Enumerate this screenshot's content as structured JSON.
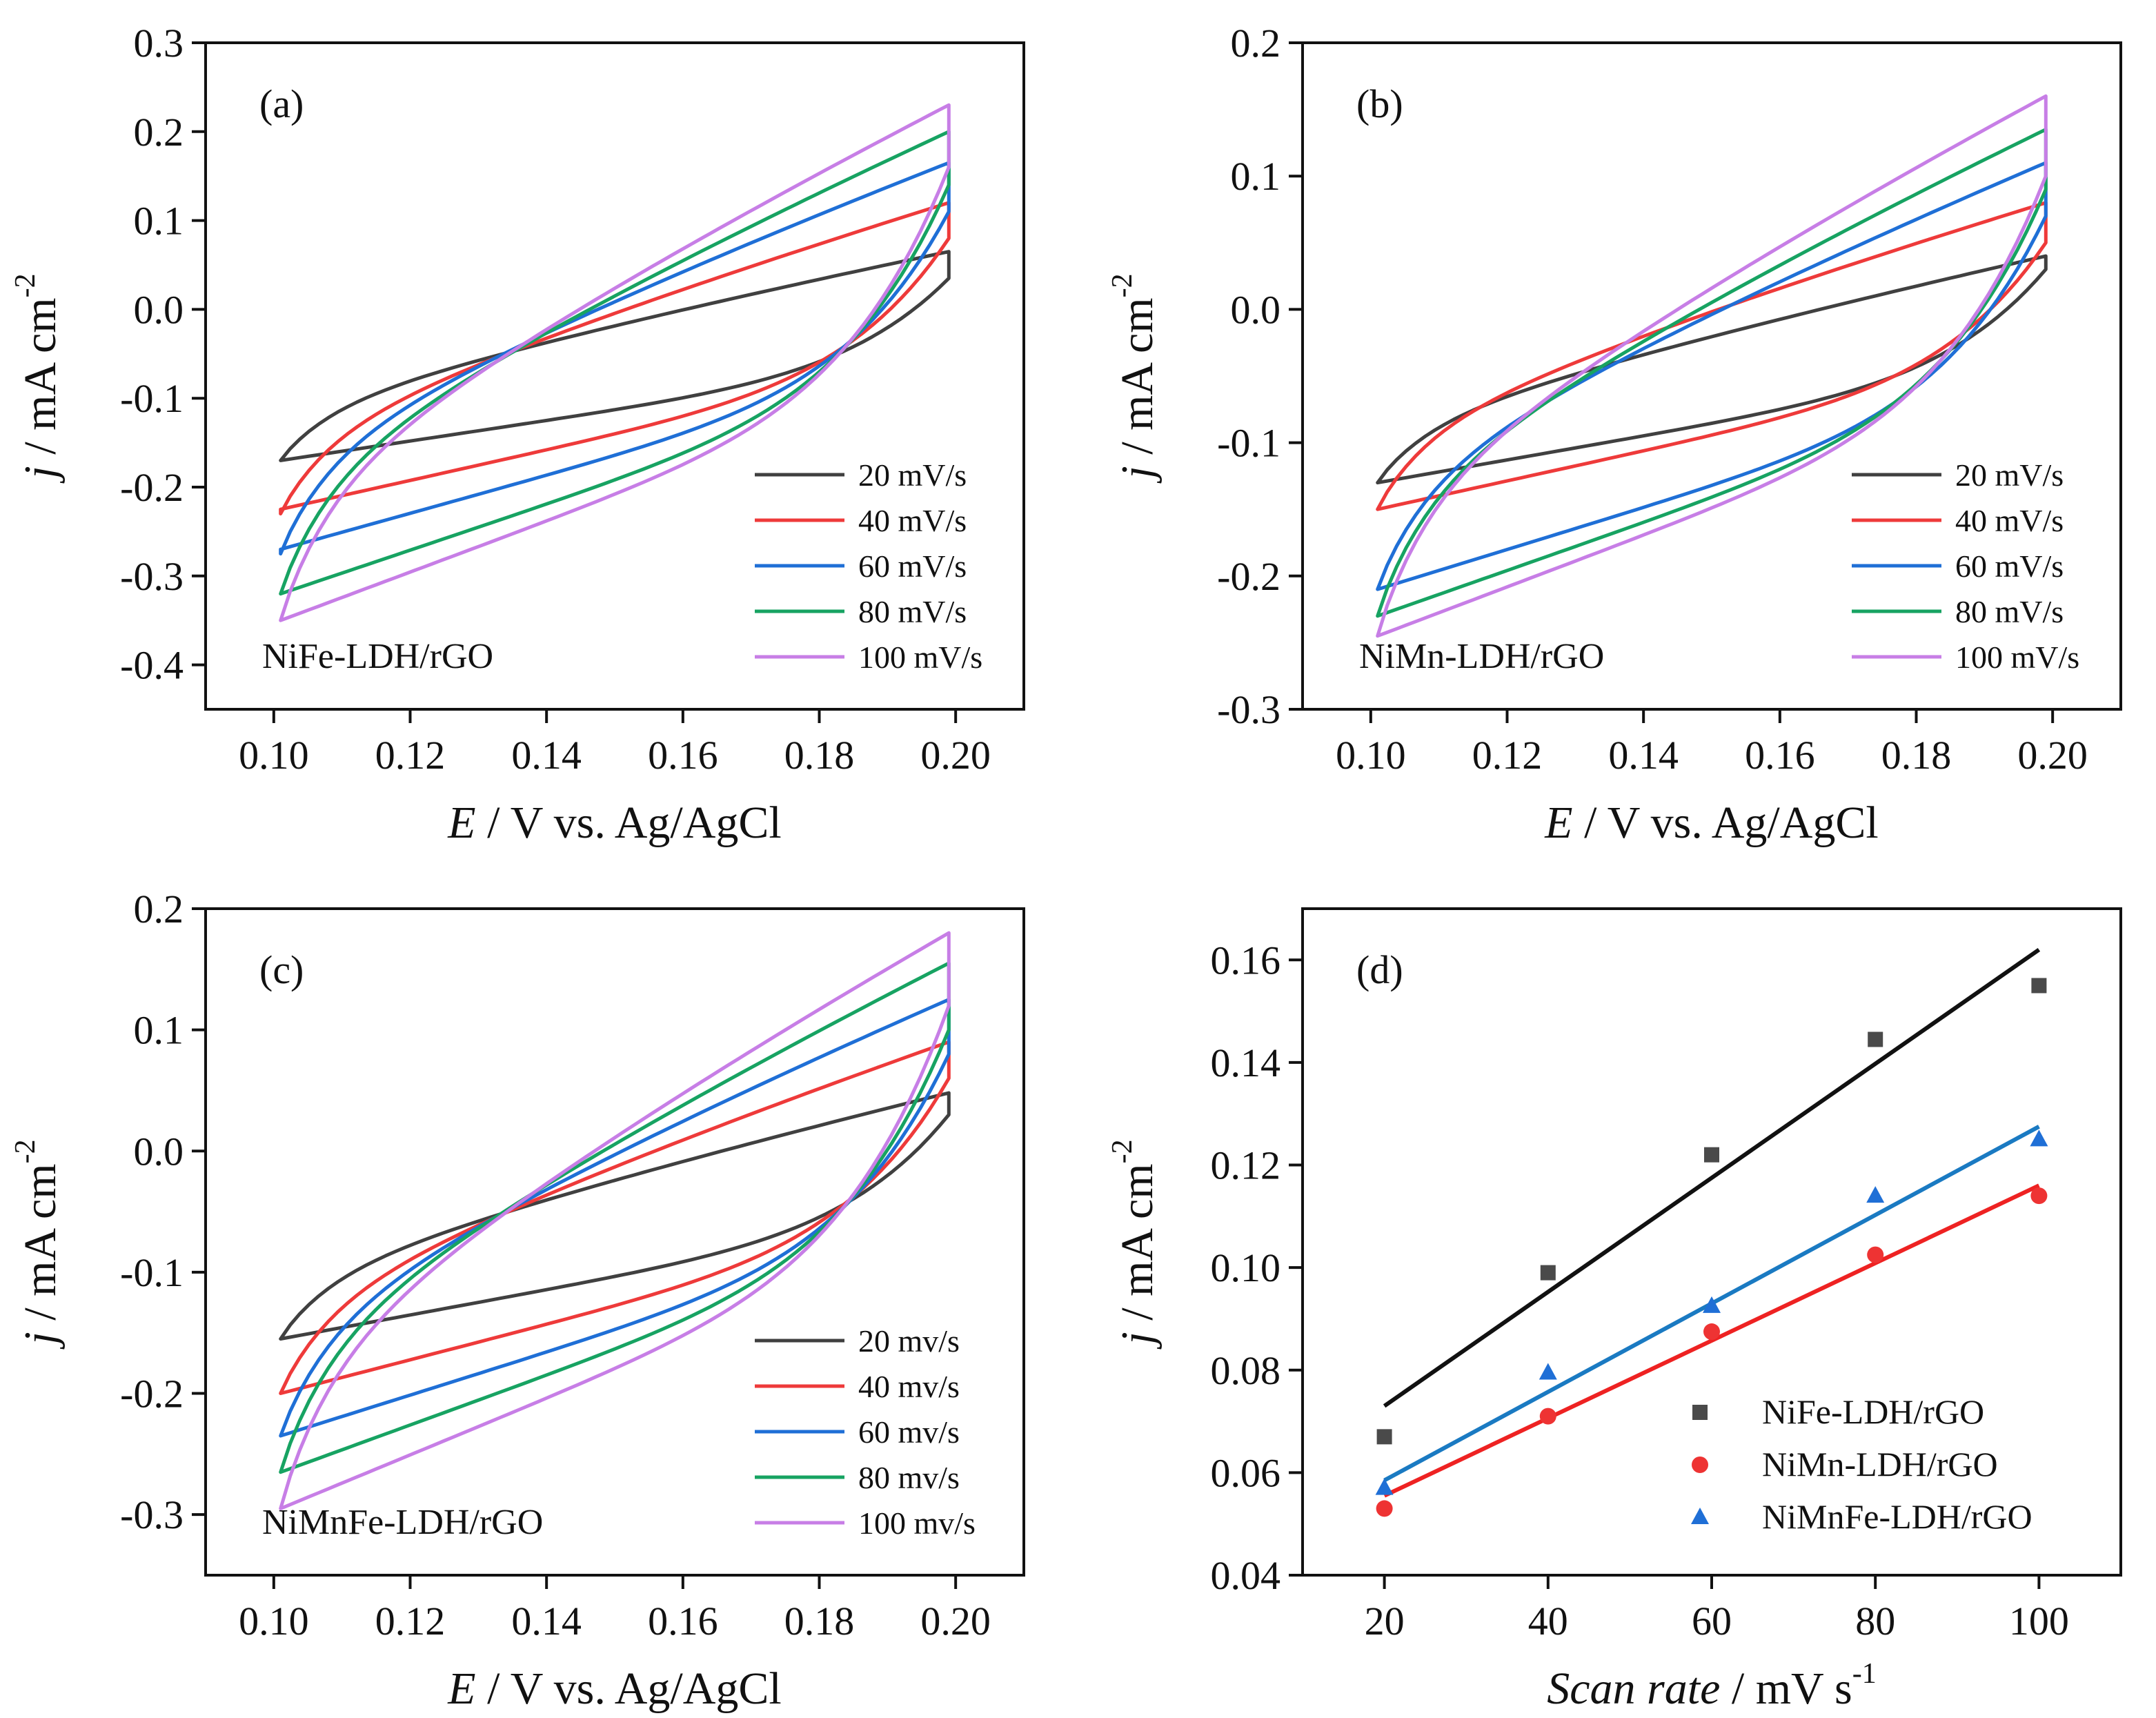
{
  "figure": {
    "panels": [
      "(a)",
      "(b)",
      "(c)",
      "(d)"
    ]
  },
  "colors": {
    "20": "#404040",
    "40": "#ee3a3a",
    "60": "#1f6fd6",
    "80": "#17a362",
    "100": "#c77ee6",
    "fit_nife": "#111111",
    "fit_nimn": "#ee2222",
    "fit_nimnfe": "#1a7ac2",
    "pt_nife": "#4a4a4a",
    "pt_nimn": "#ee3333",
    "pt_nimnfe": "#1f6fd6"
  },
  "chart_data": [
    {
      "id": "a",
      "panel_label": "(a)",
      "type": "line",
      "title": "",
      "sample": "NiFe-LDH/rGO",
      "xlabel_italic": "E",
      "xlabel_rest": " / V vs. Ag/AgCl",
      "ylabel_italic": "j",
      "ylabel_rest": " / mA cm",
      "ylabel_sup": "-2",
      "xlim": [
        0.09,
        0.21
      ],
      "ylim": [
        -0.45,
        0.3
      ],
      "xticks": [
        "0.10",
        "0.12",
        "0.14",
        "0.16",
        "0.18",
        "0.20"
      ],
      "xtick_values": [
        0.1,
        0.12,
        0.14,
        0.16,
        0.18,
        0.2
      ],
      "yticks": [
        "-0.4",
        "-0.3",
        "-0.2",
        "-0.1",
        "0.0",
        "0.1",
        "0.2",
        "0.3"
      ],
      "ytick_values": [
        -0.4,
        -0.3,
        -0.2,
        -0.1,
        0.0,
        0.1,
        0.2,
        0.3
      ],
      "x_range": [
        0.101,
        0.199
      ],
      "legend_position": "bottom-right",
      "series": [
        {
          "name": "20 mV/s",
          "color_key": "20",
          "top_start": -0.17,
          "top_end": 0.065,
          "bot_start": -0.17,
          "bot_end": 0.035,
          "wb": 0.4
        },
        {
          "name": "40 mV/s",
          "color_key": "40",
          "top_start": -0.23,
          "top_end": 0.12,
          "bot_start": -0.225,
          "bot_end": 0.08,
          "wb": 0.4
        },
        {
          "name": "60 mV/s",
          "color_key": "60",
          "top_start": -0.275,
          "top_end": 0.165,
          "bot_start": -0.27,
          "bot_end": 0.11,
          "wb": 0.4
        },
        {
          "name": "80 mV/s",
          "color_key": "80",
          "top_start": -0.32,
          "top_end": 0.2,
          "bot_start": -0.32,
          "bot_end": 0.14,
          "wb": 0.4
        },
        {
          "name": "100 mV/s",
          "color_key": "100",
          "top_start": -0.35,
          "top_end": 0.23,
          "bot_start": -0.35,
          "bot_end": 0.16,
          "wb": 0.4
        }
      ]
    },
    {
      "id": "b",
      "panel_label": "(b)",
      "type": "line",
      "title": "",
      "sample": "NiMn-LDH/rGO",
      "xlabel_italic": "E",
      "xlabel_rest": " / V vs. Ag/AgCl",
      "ylabel_italic": "j",
      "ylabel_rest": " / mA cm",
      "ylabel_sup": "-2",
      "xlim": [
        0.09,
        0.21
      ],
      "ylim": [
        -0.3,
        0.2
      ],
      "xticks": [
        "0.10",
        "0.12",
        "0.14",
        "0.16",
        "0.18",
        "0.20"
      ],
      "xtick_values": [
        0.1,
        0.12,
        0.14,
        0.16,
        0.18,
        0.2
      ],
      "yticks": [
        "-0.3",
        "-0.2",
        "-0.1",
        "0.0",
        "0.1",
        "0.2"
      ],
      "ytick_values": [
        -0.3,
        -0.2,
        -0.1,
        0.0,
        0.1,
        0.2
      ],
      "x_range": [
        0.101,
        0.199
      ],
      "legend_position": "bottom-right",
      "series": [
        {
          "name": "20 mV/s",
          "color_key": "20",
          "top_start": -0.13,
          "top_end": 0.04,
          "bot_start": -0.13,
          "bot_end": 0.03,
          "wb": 0.38
        },
        {
          "name": "40 mV/s",
          "color_key": "40",
          "top_start": -0.15,
          "top_end": 0.08,
          "bot_start": -0.15,
          "bot_end": 0.05,
          "wb": 0.38
        },
        {
          "name": "60 mV/s",
          "color_key": "60",
          "top_start": -0.21,
          "top_end": 0.11,
          "bot_start": -0.21,
          "bot_end": 0.07,
          "wb": 0.4
        },
        {
          "name": "80 mV/s",
          "color_key": "80",
          "top_start": -0.23,
          "top_end": 0.135,
          "bot_start": -0.23,
          "bot_end": 0.09,
          "wb": 0.4
        },
        {
          "name": "100 mV/s",
          "color_key": "100",
          "top_start": -0.245,
          "top_end": 0.16,
          "bot_start": -0.245,
          "bot_end": 0.1,
          "wb": 0.4
        }
      ]
    },
    {
      "id": "c",
      "panel_label": "(c)",
      "type": "line",
      "title": "",
      "sample": "NiMnFe-LDH/rGO",
      "xlabel_italic": "E",
      "xlabel_rest": " / V vs. Ag/AgCl",
      "ylabel_italic": "j",
      "ylabel_rest": " / mA cm",
      "ylabel_sup": "-2",
      "xlim": [
        0.09,
        0.21
      ],
      "ylim": [
        -0.35,
        0.2
      ],
      "xticks": [
        "0.10",
        "0.12",
        "0.14",
        "0.16",
        "0.18",
        "0.20"
      ],
      "xtick_values": [
        0.1,
        0.12,
        0.14,
        0.16,
        0.18,
        0.2
      ],
      "yticks": [
        "-0.3",
        "-0.2",
        "-0.1",
        "0.0",
        "0.1",
        "0.2"
      ],
      "ytick_values": [
        -0.3,
        -0.2,
        -0.1,
        0.0,
        0.1,
        0.2
      ],
      "x_range": [
        0.101,
        0.199
      ],
      "legend_position": "bottom-right",
      "series": [
        {
          "name": "20 mv/s",
          "color_key": "20",
          "top_start": -0.155,
          "top_end": 0.048,
          "bot_start": -0.155,
          "bot_end": 0.03,
          "wb": 0.4
        },
        {
          "name": "40 mv/s",
          "color_key": "40",
          "top_start": -0.2,
          "top_end": 0.09,
          "bot_start": -0.2,
          "bot_end": 0.06,
          "wb": 0.4
        },
        {
          "name": "60 mv/s",
          "color_key": "60",
          "top_start": -0.235,
          "top_end": 0.125,
          "bot_start": -0.235,
          "bot_end": 0.08,
          "wb": 0.4
        },
        {
          "name": "80 mv/s",
          "color_key": "80",
          "top_start": -0.265,
          "top_end": 0.155,
          "bot_start": -0.265,
          "bot_end": 0.1,
          "wb": 0.4
        },
        {
          "name": "100 mv/s",
          "color_key": "100",
          "top_start": -0.295,
          "top_end": 0.18,
          "bot_start": -0.295,
          "bot_end": 0.12,
          "wb": 0.4
        }
      ]
    },
    {
      "id": "d",
      "panel_label": "(d)",
      "type": "scatter",
      "title": "",
      "xlabel_italic": "Scan rate",
      "xlabel_rest": " / mV s",
      "xlabel_sup": "-1",
      "ylabel_italic": "j",
      "ylabel_rest": " / mA cm",
      "ylabel_sup": "-2",
      "xlim": [
        10,
        110
      ],
      "ylim": [
        0.04,
        0.17
      ],
      "xticks": [
        "20",
        "40",
        "60",
        "80",
        "100"
      ],
      "xtick_values": [
        20,
        40,
        60,
        80,
        100
      ],
      "yticks": [
        "0.04",
        "0.06",
        "0.08",
        "0.10",
        "0.12",
        "0.14",
        "0.16"
      ],
      "ytick_values": [
        0.04,
        0.06,
        0.08,
        0.1,
        0.12,
        0.14,
        0.16
      ],
      "x": [
        20,
        40,
        60,
        80,
        100
      ],
      "legend_position": "bottom-right",
      "series": [
        {
          "name": "NiFe-LDH/rGO",
          "marker": "square",
          "point_color_key": "pt_nife",
          "fit_color_key": "fit_nife",
          "values": [
            0.067,
            0.099,
            0.122,
            0.1445,
            0.155
          ],
          "fit": [
            0.073,
            0.162
          ]
        },
        {
          "name": "NiMn-LDH/rGO",
          "marker": "circle",
          "point_color_key": "pt_nimn",
          "fit_color_key": "fit_nimn",
          "values": [
            0.053,
            0.071,
            0.0875,
            0.1025,
            0.114
          ],
          "fit": [
            0.0555,
            0.116
          ]
        },
        {
          "name": "NiMnFe-LDH/rGO",
          "marker": "triangle",
          "point_color_key": "pt_nimnfe",
          "fit_color_key": "fit_nimnfe",
          "values": [
            0.057,
            0.0795,
            0.0925,
            0.114,
            0.125
          ],
          "fit": [
            0.0585,
            0.1275
          ]
        }
      ]
    }
  ]
}
